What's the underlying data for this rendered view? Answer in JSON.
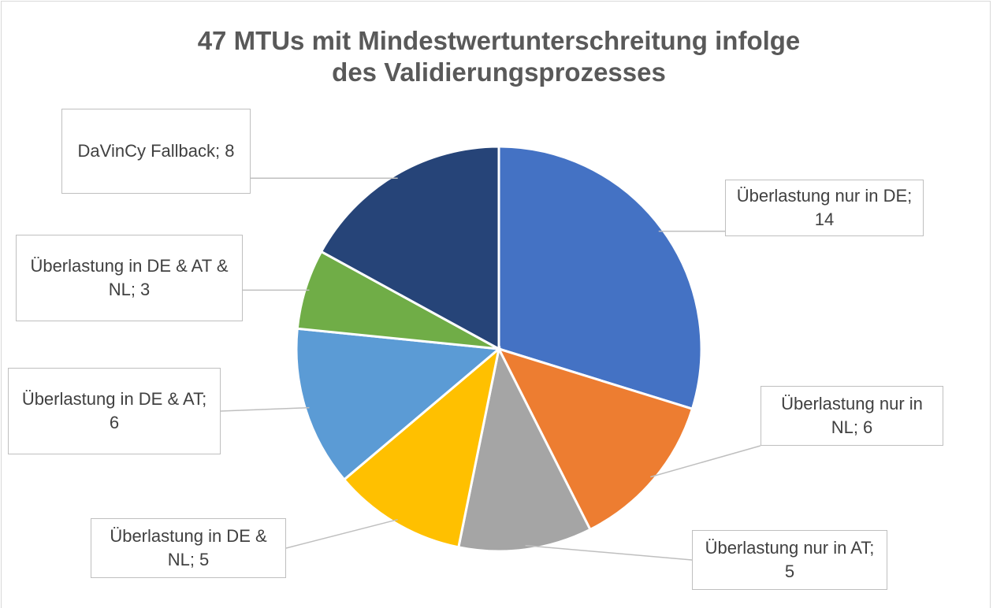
{
  "chart_data": {
    "type": "pie",
    "title": "47 MTUs mit Mindestwertunterschreitung infolge des Validierungsprozesses",
    "values": [
      14,
      6,
      5,
      5,
      6,
      3,
      8
    ],
    "value_labels": [
      "Überlastung nur in DE; 14",
      "Überlastung nur in NL; 6",
      "Überlastung nur in AT; 5",
      "Überlastung in DE & NL; 5",
      "Überlastung in DE & AT; 6",
      "Überlastung in DE & AT & NL; 3",
      "DaVinCy Fallback; 8"
    ],
    "colors": [
      "#4472c4",
      "#ed7d31",
      "#a5a5a5",
      "#ffc000",
      "#5b9bd5",
      "#70ad47",
      "#264478"
    ]
  }
}
